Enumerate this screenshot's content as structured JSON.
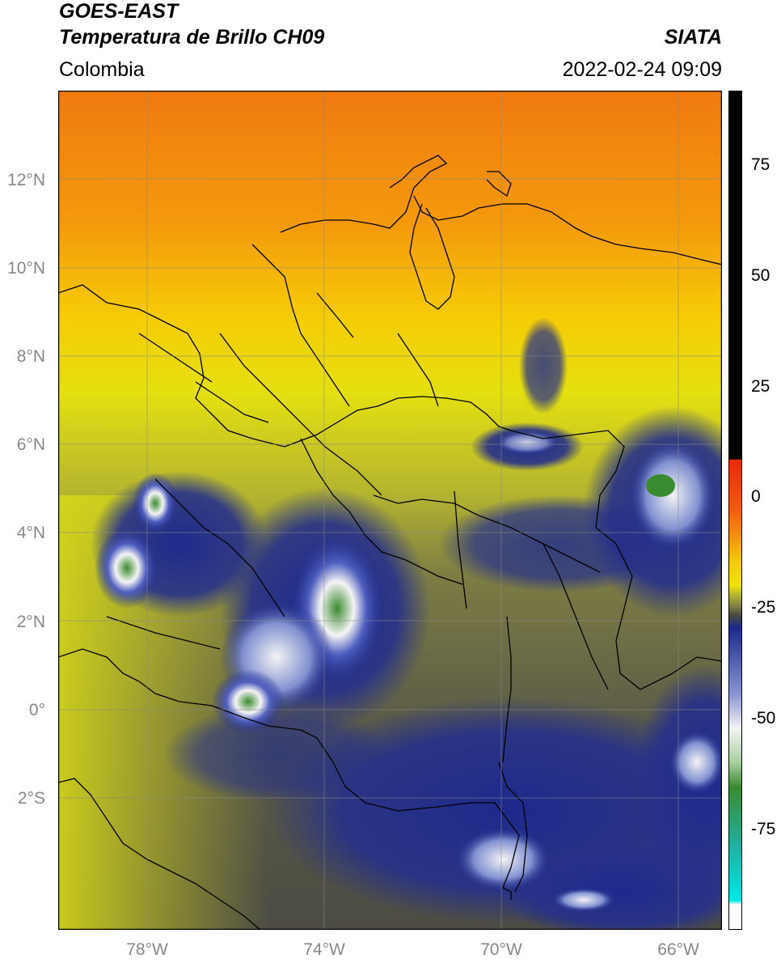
{
  "header": {
    "title_line1": "GOES-EAST",
    "title_line2": "Temperatura de Brillo CH09",
    "brand": "SIATA",
    "region": "Colombia",
    "timestamp": "2022-02-24 09:09"
  },
  "axes": {
    "lat_labels": [
      "12°N",
      "10°N",
      "8°N",
      "6°N",
      "4°N",
      "2°N",
      "0°",
      "2°S"
    ],
    "lon_labels": [
      "78°W",
      "74°W",
      "70°W",
      "66°W"
    ]
  },
  "colorbar": {
    "tick_labels": [
      "75",
      "50",
      "25",
      "0",
      "-25",
      "-50",
      "-75"
    ],
    "colors": {
      "warm_black": "#000000",
      "red": "#e8280c",
      "orange": "#f08010",
      "yellow": "#f0e000",
      "olive": "#a0a040",
      "dark_gray": "#4a4a40",
      "navy": "#1c2a8c",
      "white": "#f4f4f4",
      "green": "#3a8a30",
      "teal": "#20b0a0",
      "cyan": "#00e8e8"
    }
  }
}
